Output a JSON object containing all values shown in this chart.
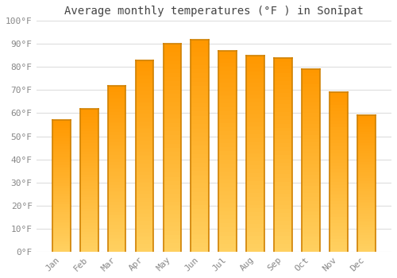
{
  "title": "Average monthly temperatures (°F ) in Sonīpat",
  "months": [
    "Jan",
    "Feb",
    "Mar",
    "Apr",
    "May",
    "Jun",
    "Jul",
    "Aug",
    "Sep",
    "Oct",
    "Nov",
    "Dec"
  ],
  "values": [
    57,
    62,
    72,
    83,
    90,
    92,
    87,
    85,
    84,
    79,
    69,
    59
  ],
  "bar_color_bottom": "#FFD060",
  "bar_color_top": "#FFA020",
  "bar_edge_color": "#D08000",
  "ylim": [
    0,
    100
  ],
  "yticks": [
    0,
    10,
    20,
    30,
    40,
    50,
    60,
    70,
    80,
    90,
    100
  ],
  "ytick_labels": [
    "0°F",
    "10°F",
    "20°F",
    "30°F",
    "40°F",
    "50°F",
    "60°F",
    "70°F",
    "80°F",
    "90°F",
    "100°F"
  ],
  "background_color": "#FFFFFF",
  "grid_color": "#DDDDDD",
  "title_fontsize": 10,
  "tick_fontsize": 8,
  "tick_color": "#888888"
}
